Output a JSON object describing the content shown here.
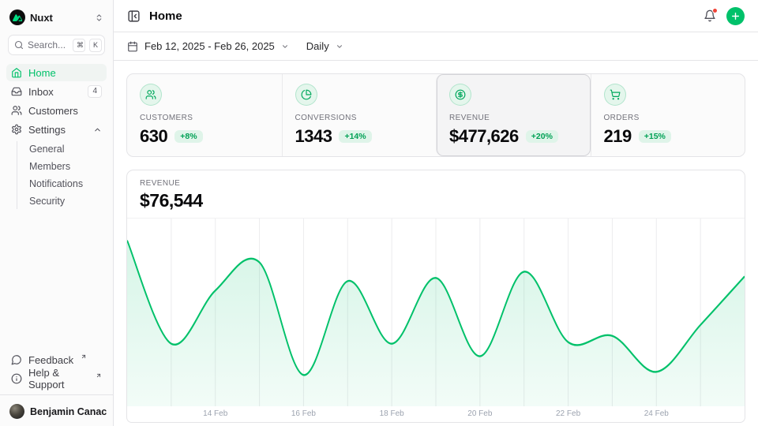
{
  "app": {
    "workspace": {
      "name": "Nuxt"
    },
    "sidebar": {
      "search": {
        "placeholder": "Search...",
        "shortcut_keys": [
          "⌘",
          "K"
        ]
      },
      "items": [
        {
          "label": "Home",
          "active": true
        },
        {
          "label": "Inbox",
          "badge": "4"
        },
        {
          "label": "Customers"
        },
        {
          "label": "Settings",
          "expanded": true,
          "children": [
            {
              "label": "General"
            },
            {
              "label": "Members"
            },
            {
              "label": "Notifications"
            },
            {
              "label": "Security"
            }
          ]
        }
      ],
      "footer_links": [
        {
          "label": "Feedback",
          "external": true
        },
        {
          "label": "Help & Support",
          "external": true
        }
      ],
      "user": {
        "name": "Benjamin Canac"
      }
    },
    "header": {
      "title": "Home",
      "notifications_unread": true
    },
    "toolbar": {
      "date_range": "Feb 12, 2025 - Feb 26, 2025",
      "period": "Daily"
    },
    "stats": [
      {
        "label": "CUSTOMERS",
        "value": "630",
        "delta": "+8%"
      },
      {
        "label": "CONVERSIONS",
        "value": "1343",
        "delta": "+14%"
      },
      {
        "label": "REVENUE",
        "value": "$477,626",
        "delta": "+20%",
        "selected": true
      },
      {
        "label": "ORDERS",
        "value": "219",
        "delta": "+15%"
      }
    ],
    "revenue_panel": {
      "label": "REVENUE",
      "value": "$76,544"
    },
    "colors": {
      "primary": "#00C16A",
      "primary_soft_bg": "#E4F6EC",
      "badge_bg": "#DFF4E9",
      "badge_text": "#00A155",
      "border": "#E4E4E7",
      "muted_text": "#71717A",
      "notification_dot": "#F04438",
      "nuxt_logo_green": "#00DC82"
    }
  },
  "chart_data": {
    "type": "area",
    "title": "Revenue, daily (Feb 12 - Feb 26, 2025)",
    "x": [
      "Feb 12",
      "Feb 13",
      "Feb 14",
      "Feb 15",
      "Feb 16",
      "Feb 17",
      "Feb 18",
      "Feb 19",
      "Feb 20",
      "Feb 21",
      "Feb 22",
      "Feb 23",
      "Feb 24",
      "Feb 25",
      "Feb 26"
    ],
    "values": [
      93000,
      60000,
      77000,
      86000,
      50000,
      80000,
      60000,
      81000,
      56000,
      83000,
      60500,
      62500,
      51000,
      66000,
      81500
    ],
    "values_note": "estimated from curve; y-axis is unlabeled in the UI",
    "ylim": [
      40000,
      100000
    ],
    "x_tick_labels": [
      {
        "index": 2,
        "label": "14 Feb"
      },
      {
        "index": 4,
        "label": "16 Feb"
      },
      {
        "index": 6,
        "label": "18 Feb"
      },
      {
        "index": 8,
        "label": "20 Feb"
      },
      {
        "index": 10,
        "label": "22 Feb"
      },
      {
        "index": 12,
        "label": "24 Feb"
      }
    ],
    "grid": "vertical line per day, no horizontal gridlines, no y tick labels",
    "legend": false,
    "line_color": "#00C16A",
    "fill_color": "rgba(0,193,106,0.12)"
  }
}
